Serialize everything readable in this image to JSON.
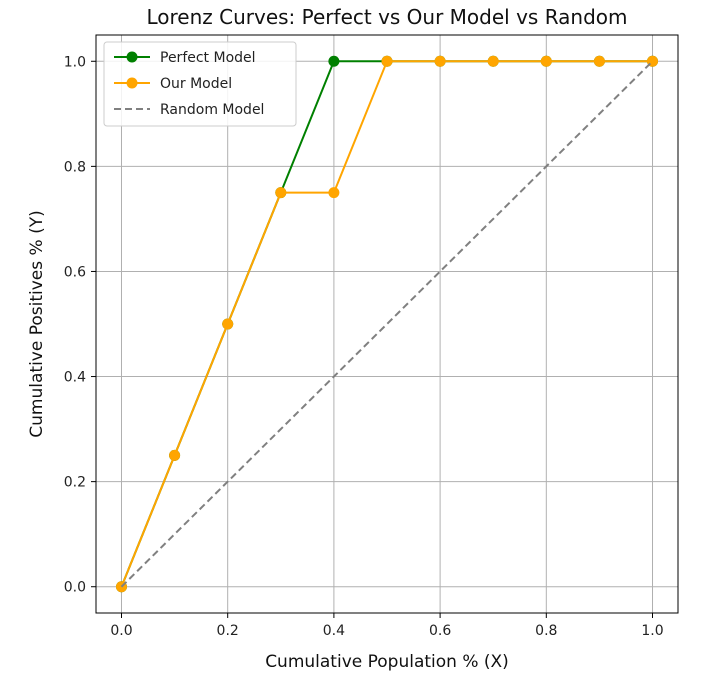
{
  "chart_data": {
    "type": "line",
    "title": "Lorenz Curves: Perfect vs Our Model vs Random",
    "xlabel": "Cumulative Population % (X)",
    "ylabel": "Cumulative Positives % (Y)",
    "xlim": [
      -0.048,
      1.048
    ],
    "ylim": [
      -0.05,
      1.05
    ],
    "xticks": [
      "0.0",
      "0.2",
      "0.4",
      "0.6",
      "0.8",
      "1.0"
    ],
    "yticks": [
      "0.0",
      "0.2",
      "0.4",
      "0.6",
      "0.8",
      "1.0"
    ],
    "grid": true,
    "legend_position": "top-left",
    "series": [
      {
        "name": "Perfect Model",
        "color": "#008000",
        "style": "solid",
        "marker": "circle",
        "x": [
          0.0,
          0.1,
          0.2,
          0.3,
          0.4,
          0.5,
          0.6,
          0.7,
          0.8,
          0.9,
          1.0
        ],
        "y": [
          0.0,
          0.25,
          0.5,
          0.75,
          1.0,
          1.0,
          1.0,
          1.0,
          1.0,
          1.0,
          1.0
        ]
      },
      {
        "name": "Our Model",
        "color": "#FFA500",
        "style": "solid",
        "marker": "circle",
        "x": [
          0.0,
          0.1,
          0.2,
          0.3,
          0.4,
          0.5,
          0.6,
          0.7,
          0.8,
          0.9,
          1.0
        ],
        "y": [
          0.0,
          0.25,
          0.5,
          0.75,
          0.75,
          1.0,
          1.0,
          1.0,
          1.0,
          1.0,
          1.0
        ]
      },
      {
        "name": "Random Model",
        "color": "#808080",
        "style": "dashed",
        "marker": "none",
        "x": [
          0.0,
          1.0
        ],
        "y": [
          0.0,
          1.0
        ]
      }
    ]
  }
}
